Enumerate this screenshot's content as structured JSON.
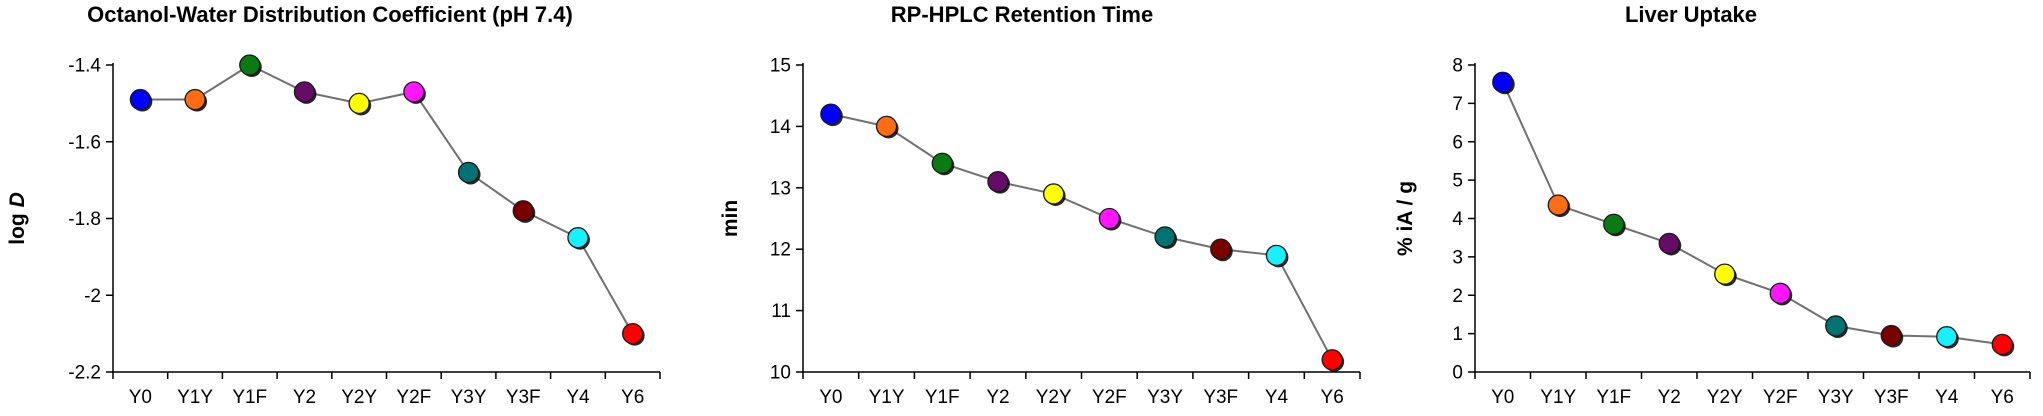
{
  "chart_data": [
    {
      "type": "line",
      "title": "Octanol-Water Distribution Coefficient (pH 7.4)",
      "xlabel": "",
      "ylabel_prefix": "log ",
      "ylabel_var": "D",
      "categories": [
        "Y0",
        "Y1Y",
        "Y1F",
        "Y2",
        "Y2Y",
        "Y2F",
        "Y3Y",
        "Y3F",
        "Y4",
        "Y6"
      ],
      "values": [
        -1.49,
        -1.49,
        -1.4,
        -1.47,
        -1.5,
        -1.47,
        -1.68,
        -1.78,
        -1.85,
        -2.1
      ],
      "ylim": [
        -2.2,
        -1.4
      ],
      "yticks": [
        -2.2,
        -2,
        -1.8,
        -1.6,
        -1.4
      ],
      "ytick_labels": [
        "-2.2",
        "-2",
        "-1.8",
        "-1.6",
        "-1.4"
      ],
      "grid": false,
      "legend": "none"
    },
    {
      "type": "line",
      "title": "RP-HPLC Retention Time",
      "xlabel": "",
      "ylabel": "min",
      "categories": [
        "Y0",
        "Y1Y",
        "Y1F",
        "Y2",
        "Y2Y",
        "Y2F",
        "Y3Y",
        "Y3F",
        "Y4",
        "Y6"
      ],
      "values": [
        14.2,
        14.0,
        13.4,
        13.1,
        12.9,
        12.5,
        12.2,
        12.0,
        11.9,
        10.2
      ],
      "ylim": [
        10,
        15
      ],
      "yticks": [
        10,
        11,
        12,
        13,
        14,
        15
      ],
      "ytick_labels": [
        "10",
        "11",
        "12",
        "13",
        "14",
        "15"
      ],
      "grid": false,
      "legend": "none"
    },
    {
      "type": "line",
      "title": "Liver Uptake",
      "xlabel": "",
      "ylabel": "% iA / g",
      "categories": [
        "Y0",
        "Y1Y",
        "Y1F",
        "Y2",
        "Y2Y",
        "Y2F",
        "Y3Y",
        "Y3F",
        "Y4",
        "Y6"
      ],
      "values": [
        7.55,
        4.35,
        3.85,
        3.35,
        2.55,
        2.05,
        1.2,
        0.95,
        0.92,
        0.72
      ],
      "ylim": [
        0,
        8
      ],
      "yticks": [
        0,
        1,
        2,
        3,
        4,
        5,
        6,
        7,
        8
      ],
      "ytick_labels": [
        "0",
        "1",
        "2",
        "3",
        "4",
        "5",
        "6",
        "7",
        "8"
      ],
      "grid": false,
      "legend": "none"
    }
  ],
  "colors": {
    "points": [
      "#0000ff",
      "#ff6d12",
      "#0a7a12",
      "#660b66",
      "#ffff00",
      "#ff16ff",
      "#007272",
      "#7a0000",
      "#16f0ff",
      "#ff0000"
    ],
    "line": "#707070",
    "axis": "#000000"
  }
}
